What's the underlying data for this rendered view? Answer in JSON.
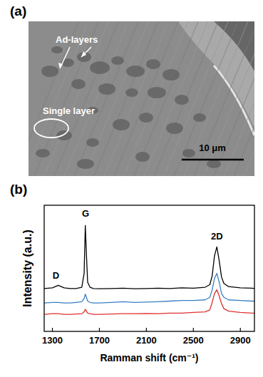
{
  "image_panel": {
    "label": "(a)",
    "annotations": [
      "Ad-layers",
      "Single layer"
    ],
    "scale_bar": "10 μm"
  },
  "chart_data": {
    "type": "line",
    "title": "(b)",
    "x_label": "Ramman shift (cm⁻¹)",
    "y_label": "Intensity (a.u.)",
    "x": [
      1230,
      1300,
      1350,
      1400,
      1450,
      1500,
      1550,
      1570,
      1580,
      1590,
      1600,
      1620,
      1650,
      1700,
      1800,
      1900,
      2000,
      2100,
      2200,
      2300,
      2400,
      2500,
      2600,
      2640,
      2660,
      2680,
      2700,
      2720,
      2740,
      2760,
      2800,
      2900,
      3000,
      3020
    ],
    "series": [
      {
        "color": "#000000",
        "values": [
          3.4,
          3.45,
          3.65,
          3.45,
          3.4,
          3.4,
          3.5,
          4.6,
          8.4,
          6.0,
          3.9,
          3.5,
          3.4,
          3.38,
          3.4,
          3.42,
          3.38,
          3.4,
          3.43,
          3.4,
          3.45,
          3.42,
          3.5,
          3.7,
          4.4,
          6.0,
          6.7,
          5.6,
          4.3,
          3.8,
          3.55,
          3.45,
          3.42,
          3.4
        ]
      },
      {
        "color": "#3a7fc4",
        "values": [
          2.25,
          2.3,
          2.3,
          2.25,
          2.25,
          2.3,
          2.35,
          2.6,
          2.95,
          2.7,
          2.4,
          2.3,
          2.25,
          2.25,
          2.3,
          2.35,
          2.3,
          2.32,
          2.35,
          2.4,
          2.45,
          2.45,
          2.5,
          2.7,
          3.3,
          4.2,
          4.6,
          3.9,
          3.0,
          2.7,
          2.5,
          2.45,
          2.4,
          2.4
        ]
      },
      {
        "color": "#e03030",
        "values": [
          1.35,
          1.4,
          1.4,
          1.35,
          1.35,
          1.38,
          1.4,
          1.55,
          1.75,
          1.6,
          1.45,
          1.4,
          1.35,
          1.35,
          1.38,
          1.4,
          1.4,
          1.42,
          1.4,
          1.45,
          1.45,
          1.5,
          1.55,
          1.7,
          2.3,
          3.0,
          3.3,
          2.8,
          2.2,
          1.8,
          1.6,
          1.5,
          1.45,
          1.45
        ]
      }
    ],
    "annotations": [
      {
        "text": "D",
        "x": 1330,
        "y": 4.2
      },
      {
        "text": "G",
        "x": 1582,
        "y": 9.1
      },
      {
        "text": "2D",
        "x": 2700,
        "y": 7.3
      }
    ],
    "xlim": [
      1230,
      3020
    ],
    "ylim": [
      0,
      10
    ],
    "xticks": [
      1300,
      1700,
      2100,
      2500,
      2900
    ],
    "tick_labels": "x",
    "grid": false
  }
}
